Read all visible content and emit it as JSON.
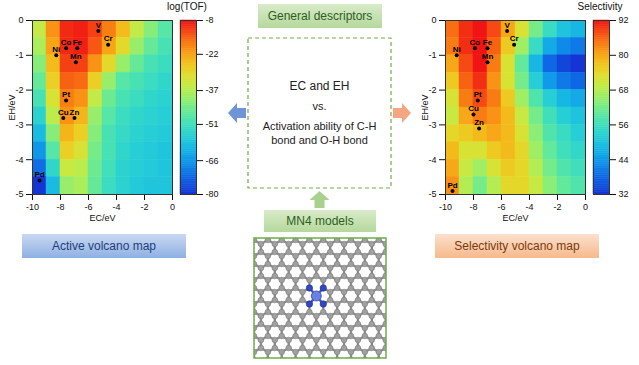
{
  "chart_data": [
    {
      "type": "heatmap",
      "title": "Active volcano map",
      "colorbar_title": "log(TOF)",
      "xlabel": "EC/eV",
      "ylabel": "EH/eV",
      "xlim": [
        -10,
        0
      ],
      "xticks": [
        -10,
        -8,
        -6,
        -4,
        -2,
        0
      ],
      "ylim": [
        -5,
        0
      ],
      "yticks": [
        -5,
        -4,
        -3,
        -2,
        -1,
        0
      ],
      "x_edges": [
        -10,
        -9,
        -8,
        -7,
        -6,
        -5,
        -4,
        -3,
        -2,
        -1,
        0
      ],
      "y_edges": [
        0,
        -0.5,
        -1,
        -1.5,
        -2,
        -2.5,
        -3,
        -3.5,
        -4,
        -4.5,
        -5
      ],
      "cells": [
        [
          -35,
          -20,
          -10,
          -9,
          -12,
          -18,
          -25,
          -35,
          -42,
          -48
        ],
        [
          -38,
          -22,
          -10,
          -9,
          -14,
          -22,
          -30,
          -40,
          -46,
          -50
        ],
        [
          -42,
          -25,
          -12,
          -12,
          -20,
          -30,
          -40,
          -46,
          -50,
          -52
        ],
        [
          -46,
          -28,
          -15,
          -16,
          -28,
          -40,
          -48,
          -50,
          -52,
          -54
        ],
        [
          -50,
          -32,
          -18,
          -20,
          -35,
          -45,
          -50,
          -52,
          -54,
          -55
        ],
        [
          -55,
          -36,
          -20,
          -24,
          -40,
          -48,
          -52,
          -54,
          -55,
          -56
        ],
        [
          -60,
          -42,
          -24,
          -28,
          -42,
          -50,
          -53,
          -55,
          -56,
          -57
        ],
        [
          -66,
          -48,
          -28,
          -32,
          -44,
          -50,
          -54,
          -56,
          -57,
          -58
        ],
        [
          -72,
          -54,
          -34,
          -36,
          -45,
          -51,
          -55,
          -56,
          -57,
          -58
        ],
        [
          -80,
          -60,
          -40,
          -38,
          -46,
          -52,
          -55,
          -57,
          -58,
          -58
        ]
      ],
      "colorbar_lim": [
        -80,
        -8
      ],
      "colorbar_ticks": [
        -80,
        -66,
        -51,
        -37,
        -22,
        -8
      ],
      "points": {
        "labels": [
          "V",
          "Cr",
          "Co",
          "Fe",
          "Ni",
          "Mn",
          "Pt",
          "Cu",
          "Zn",
          "Pd"
        ],
        "x": [
          -5.3,
          -4.6,
          -7.6,
          -6.8,
          -8.3,
          -6.9,
          -7.6,
          -7.8,
          -7.0,
          -9.5
        ],
        "y": [
          -0.3,
          -0.7,
          -0.8,
          -0.8,
          -1.0,
          -1.2,
          -2.3,
          -2.8,
          -2.8,
          -4.6
        ]
      }
    },
    {
      "type": "heatmap",
      "title": "Selectivity volcano map",
      "colorbar_title": "Selectivity",
      "xlabel": "EC/eV",
      "ylabel": "EH/eV",
      "xlim": [
        -10,
        0
      ],
      "xticks": [
        -10,
        -8,
        -6,
        -4,
        -2,
        0
      ],
      "ylim": [
        -5,
        0
      ],
      "yticks": [
        -5,
        -4,
        -3,
        -2,
        -1,
        0
      ],
      "x_edges": [
        -10,
        -9,
        -8,
        -7,
        -6,
        -5,
        -4,
        -3,
        -2,
        -1,
        0
      ],
      "y_edges": [
        0,
        -0.5,
        -1,
        -1.5,
        -2,
        -2.5,
        -3,
        -3.5,
        -4,
        -4.5,
        -5
      ],
      "cells": [
        [
          85,
          90,
          92,
          88,
          80,
          72,
          62,
          55,
          50,
          48
        ],
        [
          84,
          90,
          92,
          86,
          76,
          66,
          55,
          46,
          42,
          40
        ],
        [
          80,
          88,
          92,
          84,
          72,
          60,
          48,
          38,
          34,
          32
        ],
        [
          76,
          86,
          90,
          82,
          72,
          62,
          52,
          44,
          40,
          38
        ],
        [
          72,
          84,
          88,
          84,
          76,
          66,
          58,
          52,
          48,
          46
        ],
        [
          70,
          80,
          84,
          82,
          78,
          70,
          62,
          56,
          52,
          50
        ],
        [
          74,
          76,
          78,
          80,
          78,
          72,
          64,
          58,
          55,
          52
        ],
        [
          78,
          72,
          72,
          76,
          78,
          74,
          66,
          60,
          56,
          54
        ],
        [
          80,
          70,
          66,
          72,
          76,
          74,
          68,
          62,
          58,
          56
        ],
        [
          82,
          68,
          62,
          68,
          74,
          74,
          70,
          64,
          60,
          58
        ]
      ],
      "colorbar_lim": [
        32,
        92
      ],
      "colorbar_ticks": [
        32,
        44,
        56,
        68,
        80,
        92
      ],
      "points": {
        "labels": [
          "V",
          "Cr",
          "Co",
          "Fe",
          "Ni",
          "Mn",
          "Pt",
          "Cu",
          "Zn",
          "Pd"
        ],
        "x": [
          -5.6,
          -5.1,
          -7.9,
          -7.0,
          -9.2,
          -7.0,
          -7.7,
          -8.0,
          -7.6,
          -9.5
        ],
        "y": [
          -0.3,
          -0.7,
          -0.8,
          -0.8,
          -1.0,
          -1.2,
          -2.3,
          -2.7,
          -3.1,
          -4.9
        ]
      }
    }
  ],
  "diagram": {
    "header": "General descriptors",
    "box_lines": [
      "EC and EH",
      "vs.",
      "Activation ability of C-H bond and O-H bond"
    ],
    "model_label": "MN4 models"
  }
}
